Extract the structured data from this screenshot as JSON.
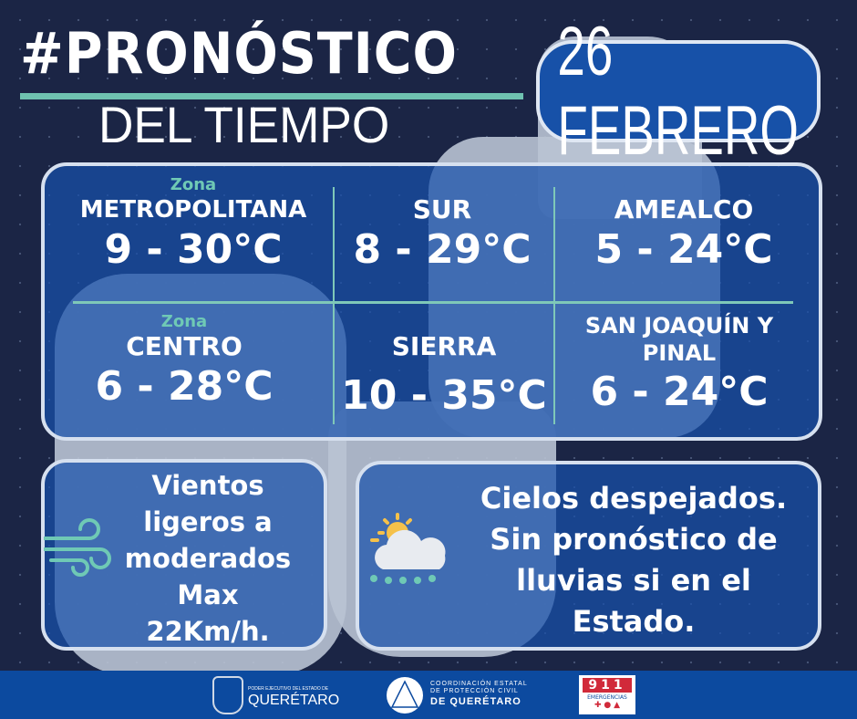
{
  "header": {
    "title": "#PRONÓSTICO",
    "subtitle": "DEL TIEMPO",
    "date": "26 FEBRERO"
  },
  "zones": [
    {
      "prefix": "Zona",
      "name": "METROPOLITANA",
      "temp": "9 - 30°C"
    },
    {
      "prefix": "",
      "name": "SUR",
      "temp": "8 - 29°C"
    },
    {
      "prefix": "",
      "name": "AMEALCO",
      "temp": "5 - 24°C"
    },
    {
      "prefix": "Zona",
      "name": "CENTRO",
      "temp": "6 - 28°C"
    },
    {
      "prefix": "",
      "name": "SIERRA",
      "temp": "10 - 35°C"
    },
    {
      "prefix": "",
      "name": "SAN JOAQUÍN Y PINAL",
      "temp": "6 - 24°C"
    }
  ],
  "wind": {
    "icon": "wind-icon",
    "text": "Vientos ligeros a moderados Max 22Km/h."
  },
  "sky": {
    "icon": "sun-cloud-rain-icon",
    "text": "Cielos despejados. Sin pronóstico de lluvias si en el Estado."
  },
  "footer": {
    "logo1_small": "PODER EJECUTIVO DEL ESTADO DE",
    "logo1_big": "QUERÉTARO",
    "logo2_line1": "COORDINACIÓN ESTATAL",
    "logo2_line2": "DE PROTECCIÓN CIVIL",
    "logo2_line3": "DE QUERÉTARO",
    "logo3_num": "911",
    "logo3_text": "EMERGENCIAS"
  },
  "colors": {
    "background": "#1b2545",
    "panel": "#1850aa",
    "accent": "#6fc2b0",
    "footer": "#0c4a9f"
  }
}
